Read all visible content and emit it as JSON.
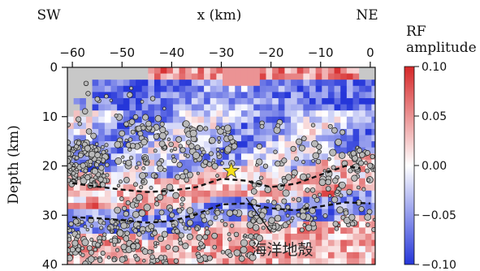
{
  "chart_data": {
    "type": "heatmap",
    "title": "",
    "xlabel": "x (km)",
    "ylabel": "Depth (km)",
    "xlim": [
      -61,
      1
    ],
    "ylim": [
      0,
      40
    ],
    "y_inverted": true,
    "xticks": [
      -60,
      -50,
      -40,
      -30,
      -20,
      -10,
      0
    ],
    "yticks": [
      0,
      10,
      20,
      30,
      40
    ],
    "direction_labels": {
      "left": "SW",
      "right": "NE"
    },
    "colorbar": {
      "label_line1": "RF",
      "label_line2": "amplitude",
      "min": -0.1,
      "max": 0.1,
      "ticks": [
        "0.10",
        "0.05",
        "0.00",
        "−0.05",
        "−0.10"
      ],
      "tick_values": [
        0.1,
        0.05,
        0.0,
        -0.05,
        -0.1
      ],
      "colors": {
        "positive": "#d62728",
        "zero": "#ffffff",
        "negative": "#2536d9",
        "nodata": "#c8c8c8"
      }
    },
    "upper_interface": {
      "x": [
        -60,
        -55,
        -50,
        -45,
        -40,
        -35,
        -30,
        -25,
        -20,
        -15,
        -10,
        -5,
        -2
      ],
      "depth": [
        23.5,
        24.2,
        24.8,
        25.3,
        25.0,
        24.3,
        22.6,
        23.0,
        24.3,
        23.6,
        21.8,
        20.0,
        20.5
      ]
    },
    "lower_interface": {
      "x": [
        -60,
        -55,
        -50,
        -45,
        -40,
        -35,
        -30,
        -25,
        -20,
        -15,
        -10,
        -5,
        0
      ],
      "depth": [
        30.4,
        30.6,
        31.0,
        31.5,
        31.2,
        29.8,
        27.8,
        27.6,
        28.6,
        29.0,
        28.2,
        27.4,
        27.6
      ]
    },
    "mainshock": {
      "x": -28,
      "depth": 21
    },
    "annotation": {
      "text": "海洋地殻",
      "x": -21,
      "depth": 37,
      "pointer_from": [
        -25,
        26.5
      ],
      "pointer_to": [
        -20,
        33.5
      ]
    },
    "seismicity": {
      "clusters": [
        {
          "x_range": [
            -61,
            -53
          ],
          "depth_range": [
            15,
            24
          ],
          "count": 140
        },
        {
          "x_range": [
            -51,
            -37
          ],
          "depth_range": [
            10,
            30
          ],
          "count": 120
        },
        {
          "x_range": [
            -37,
            -27
          ],
          "depth_range": [
            12,
            23
          ],
          "count": 60
        },
        {
          "x_range": [
            -23,
            -4
          ],
          "depth_range": [
            11,
            23
          ],
          "count": 45
        },
        {
          "x_range": [
            -4,
            1
          ],
          "depth_range": [
            16,
            21
          ],
          "count": 30
        },
        {
          "x_range": [
            -61,
            -38
          ],
          "depth_range": [
            31,
            40
          ],
          "count": 160
        },
        {
          "x_range": [
            -38,
            -22
          ],
          "depth_range": [
            29,
            39
          ],
          "count": 70
        },
        {
          "x_range": [
            -24,
            1
          ],
          "depth_range": [
            22,
            33
          ],
          "count": 110
        },
        {
          "x_range": [
            -61,
            -40
          ],
          "depth_range": [
            3,
            14
          ],
          "count": 25
        }
      ]
    }
  }
}
